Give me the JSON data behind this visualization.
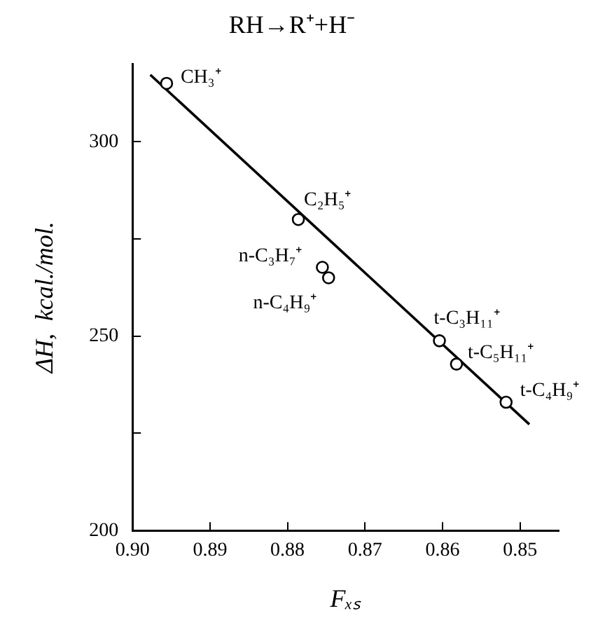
{
  "chart_data": {
    "type": "scatter",
    "title": "RH→R⁺+H⁻",
    "xlabel": "Fₓₛ",
    "ylabel": "ΔH,  kcal./mol.",
    "xlim": [
      0.9,
      0.845
    ],
    "ylim": [
      200,
      320
    ],
    "xticks": [
      {
        "value": 0.9,
        "label": "0.90"
      },
      {
        "value": 0.89,
        "label": "0.89"
      },
      {
        "value": 0.88,
        "label": "0.88"
      },
      {
        "value": 0.87,
        "label": "0.87"
      },
      {
        "value": 0.86,
        "label": "0.86"
      },
      {
        "value": 0.85,
        "label": "0.85"
      }
    ],
    "yticks": [
      200,
      {
        "value": 225,
        "label": null
      },
      250,
      {
        "value": 275,
        "label": null
      },
      300
    ],
    "grid": false,
    "legend": false,
    "marker": "circle",
    "series": [
      {
        "color": "#000000",
        "x": [
          0.8956,
          0.8786,
          0.8755,
          0.8747,
          0.8604,
          0.8582,
          0.8518
        ],
        "values": [
          315,
          280,
          267.7,
          265,
          248.8,
          242.8,
          233
        ]
      },
      {
        "type": "line",
        "color": "#000000",
        "marker": "none",
        "line_style": "solid",
        "x": [
          0.8977,
          0.8488
        ],
        "values": [
          317.2,
          227.3
        ]
      }
    ],
    "annotations": [
      {
        "text": "CH₃⁺",
        "x": 0.8956,
        "y": 315
      },
      {
        "text": "C₂H₅⁺",
        "x": 0.8786,
        "y": 280
      },
      {
        "text": "n-C₃H₇⁺",
        "x": 0.8755,
        "y": 267.7
      },
      {
        "text": "n-C₄H₉⁺",
        "x": 0.8747,
        "y": 265
      },
      {
        "text": "t-C₃H₁₁⁺",
        "x": 0.8604,
        "y": 248.8
      },
      {
        "text": "t-C₅H₁₁⁺",
        "x": 0.8582,
        "y": 242.8
      },
      {
        "text": "t-C₄H₉⁺",
        "x": 0.8518,
        "y": 233
      }
    ]
  }
}
